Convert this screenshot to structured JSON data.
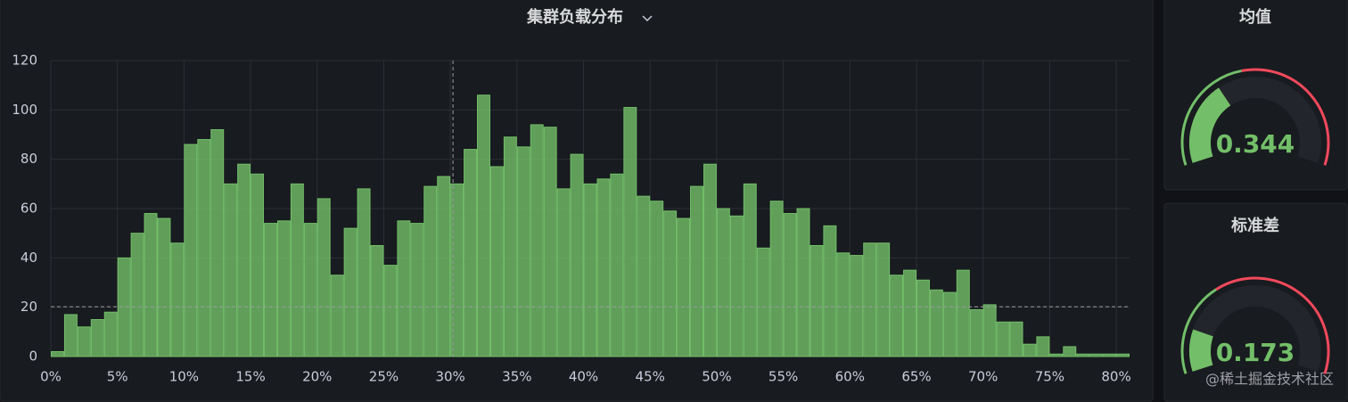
{
  "chart_data": [
    {
      "type": "histogram",
      "title": "集群负载分布",
      "bins": [
        0,
        1,
        2,
        3,
        4,
        5,
        6,
        7,
        8,
        9,
        10,
        11,
        12,
        13,
        14,
        15,
        16,
        17,
        18,
        19,
        20,
        21,
        22,
        23,
        24,
        25,
        26,
        27,
        28,
        29,
        30,
        31,
        32,
        33,
        34,
        35,
        36,
        37,
        38,
        39,
        40,
        41,
        42,
        43,
        44,
        45,
        46,
        47,
        48,
        49,
        50,
        51,
        52,
        53,
        54,
        55,
        56,
        57,
        58,
        59,
        60,
        61,
        62,
        63,
        64,
        65,
        66,
        67,
        68,
        69,
        70,
        71,
        72,
        73,
        74,
        75,
        76,
        77,
        78,
        79,
        80,
        81
      ],
      "values": [
        2,
        17,
        12,
        15,
        18,
        40,
        50,
        58,
        56,
        46,
        86,
        88,
        92,
        70,
        78,
        74,
        54,
        55,
        70,
        54,
        64,
        33,
        52,
        68,
        45,
        37,
        55,
        54,
        69,
        73,
        70,
        84,
        106,
        77,
        89,
        85,
        94,
        93,
        68,
        82,
        70,
        72,
        74,
        101,
        65,
        63,
        59,
        56,
        69,
        78,
        60,
        57,
        70,
        44,
        63,
        58,
        60,
        45,
        53,
        42,
        41,
        46,
        46,
        33,
        35,
        31,
        27,
        26,
        35,
        19,
        21,
        14,
        14,
        5,
        8,
        1,
        4,
        1,
        1,
        1,
        1
      ],
      "color": "#73bf69",
      "xlim": [
        0,
        81
      ],
      "xticks": [
        {
          "value": 0,
          "label": "0%"
        },
        {
          "value": 5,
          "label": "5%"
        },
        {
          "value": 10,
          "label": "10%"
        },
        {
          "value": 15,
          "label": "15%"
        },
        {
          "value": 20,
          "label": "20%"
        },
        {
          "value": 25,
          "label": "25%"
        },
        {
          "value": 30,
          "label": "30%"
        },
        {
          "value": 35,
          "label": "35%"
        },
        {
          "value": 40,
          "label": "40%"
        },
        {
          "value": 45,
          "label": "45%"
        },
        {
          "value": 50,
          "label": "50%"
        },
        {
          "value": 55,
          "label": "55%"
        },
        {
          "value": 60,
          "label": "60%"
        },
        {
          "value": 65,
          "label": "65%"
        },
        {
          "value": 70,
          "label": "70%"
        },
        {
          "value": 75,
          "label": "75%"
        },
        {
          "value": 80,
          "label": "80%"
        }
      ],
      "ylim": [
        0,
        120
      ],
      "yticks": [
        0,
        20,
        40,
        60,
        80,
        100,
        120
      ],
      "grid": true,
      "crosshair": {
        "x": 30.2,
        "y": 20.2
      }
    },
    {
      "type": "gauge",
      "title": "均值",
      "value": 0.344,
      "min": 0,
      "max": 1,
      "color": "#73bf69",
      "thresholds": [
        {
          "value": 0,
          "color": "#73bf69"
        },
        {
          "value": 0.45,
          "color": "#f2495c"
        }
      ]
    },
    {
      "type": "gauge",
      "title": "标准差",
      "value": 0.173,
      "min": 0,
      "max": 1,
      "color": "#73bf69",
      "thresholds": [
        {
          "value": 0,
          "color": "#73bf69"
        },
        {
          "value": 0.35,
          "color": "#f2495c"
        }
      ]
    }
  ],
  "watermark": "@稀土掘金技术社区"
}
